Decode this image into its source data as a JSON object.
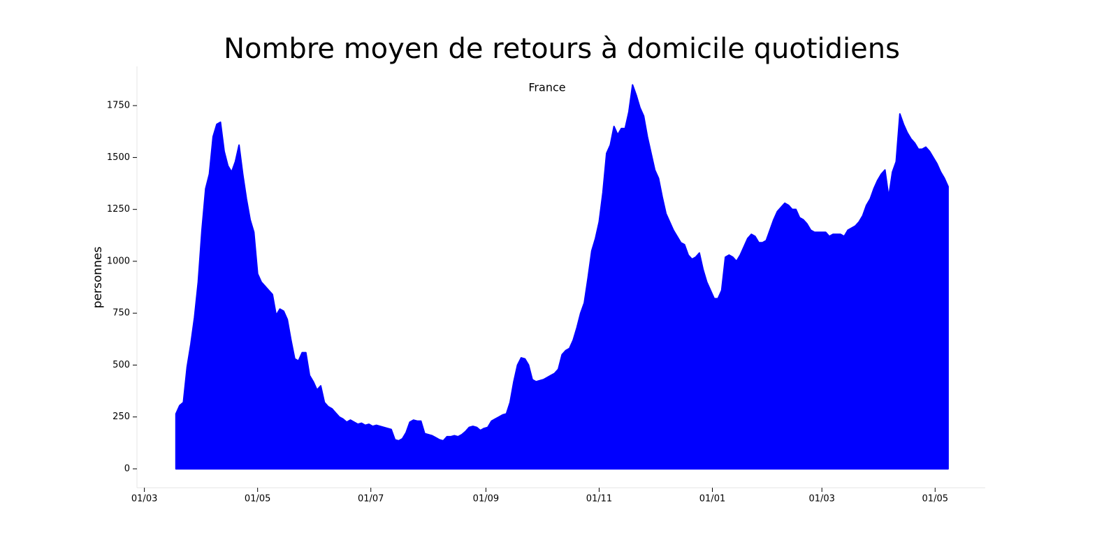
{
  "chart_data": {
    "type": "area",
    "title": "Nombre moyen de retours à domicile quotidiens",
    "subtitle": "France",
    "y_label": "personnes",
    "color": "#0000ff",
    "x": [
      17,
      19,
      21,
      23,
      25,
      27,
      29,
      31,
      33,
      35,
      37,
      39,
      41,
      43,
      45,
      47,
      49,
      51,
      53,
      55,
      57,
      59,
      61,
      63,
      65,
      67,
      69,
      71,
      73,
      75,
      77,
      79,
      81,
      83,
      85,
      87,
      89,
      91,
      93,
      95,
      97,
      99,
      101,
      103,
      105,
      107,
      109,
      111,
      113,
      115,
      117,
      119,
      121,
      123,
      125,
      127,
      129,
      131,
      133,
      135,
      137,
      139,
      141,
      143,
      145,
      147,
      149,
      151,
      153,
      155,
      157,
      159,
      161,
      163,
      165,
      167,
      169,
      171,
      173,
      175,
      177,
      179,
      181,
      183,
      185,
      187,
      189,
      191,
      193,
      195,
      197,
      199,
      201,
      203,
      205,
      207,
      209,
      211,
      213,
      215,
      217,
      219,
      221,
      223,
      225,
      227,
      229,
      231,
      233,
      235,
      237,
      239,
      241,
      243,
      245,
      247,
      249,
      251,
      253,
      255,
      257,
      259,
      261,
      263,
      265,
      267,
      269,
      271,
      273,
      275,
      277,
      279,
      281,
      283,
      285,
      287,
      289,
      291,
      293,
      295,
      297,
      299,
      301,
      303,
      305,
      307,
      309,
      311,
      313,
      315,
      317,
      319,
      321,
      323,
      325,
      327,
      329,
      331,
      333,
      335,
      337,
      339,
      341,
      343,
      345,
      347,
      349,
      351,
      353,
      355,
      357,
      359,
      361,
      363,
      365,
      367,
      369,
      371,
      373,
      375,
      377,
      379,
      381,
      383,
      385,
      387,
      389,
      391,
      393,
      395,
      397,
      399,
      401,
      403,
      405,
      407,
      409,
      411,
      413,
      415,
      417,
      419,
      421,
      423,
      425,
      427,
      429,
      431,
      433
    ],
    "values": [
      265,
      305,
      320,
      490,
      600,
      730,
      900,
      1150,
      1350,
      1420,
      1600,
      1660,
      1670,
      1530,
      1460,
      1430,
      1480,
      1560,
      1420,
      1300,
      1200,
      1140,
      940,
      900,
      880,
      860,
      840,
      740,
      770,
      760,
      720,
      620,
      530,
      520,
      560,
      560,
      450,
      420,
      380,
      400,
      320,
      300,
      290,
      270,
      250,
      240,
      225,
      235,
      225,
      215,
      220,
      210,
      215,
      205,
      210,
      205,
      200,
      195,
      190,
      140,
      135,
      145,
      175,
      225,
      235,
      230,
      230,
      170,
      165,
      160,
      150,
      140,
      135,
      155,
      155,
      160,
      155,
      165,
      180,
      200,
      205,
      200,
      185,
      195,
      200,
      230,
      240,
      250,
      260,
      265,
      320,
      420,
      500,
      535,
      530,
      500,
      430,
      420,
      425,
      430,
      440,
      450,
      460,
      480,
      550,
      570,
      580,
      620,
      680,
      750,
      800,
      920,
      1050,
      1110,
      1190,
      1330,
      1520,
      1560,
      1650,
      1610,
      1640,
      1640,
      1720,
      1850,
      1800,
      1740,
      1700,
      1600,
      1520,
      1440,
      1400,
      1310,
      1230,
      1190,
      1150,
      1120,
      1090,
      1080,
      1030,
      1010,
      1020,
      1040,
      960,
      900,
      860,
      820,
      820,
      860,
      1020,
      1030,
      1020,
      1000,
      1030,
      1070,
      1110,
      1130,
      1120,
      1090,
      1090,
      1100,
      1150,
      1200,
      1240,
      1260,
      1280,
      1270,
      1250,
      1250,
      1210,
      1200,
      1180,
      1150,
      1140,
      1140,
      1140,
      1140,
      1120,
      1130,
      1130,
      1130,
      1120,
      1150,
      1160,
      1170,
      1190,
      1220,
      1270,
      1300,
      1350,
      1390,
      1420,
      1440,
      1310,
      1430,
      1480,
      1710,
      1660,
      1620,
      1590,
      1570,
      1540,
      1540,
      1550,
      1530,
      1500,
      1470,
      1430,
      1400,
      1360
    ],
    "xlim": [
      -4,
      453
    ],
    "xticks": [
      {
        "value": 0,
        "label": "01/03"
      },
      {
        "value": 61,
        "label": "01/05"
      },
      {
        "value": 122,
        "label": "01/07"
      },
      {
        "value": 184,
        "label": "01/09"
      },
      {
        "value": 245,
        "label": "01/11"
      },
      {
        "value": 306,
        "label": "01/01"
      },
      {
        "value": 365,
        "label": "01/03"
      },
      {
        "value": 426,
        "label": "01/05"
      }
    ],
    "ylim": [
      -91,
      1939
    ],
    "yticks": [
      0,
      250,
      500,
      750,
      1000,
      1250,
      1500,
      1750
    ]
  }
}
